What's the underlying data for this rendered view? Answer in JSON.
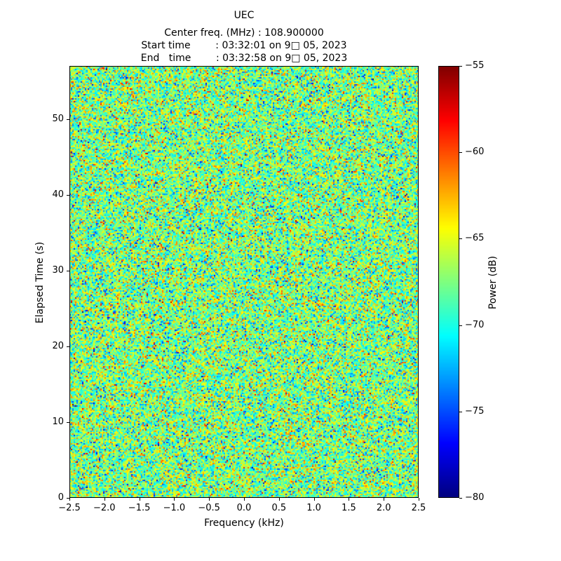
{
  "figure": {
    "title": "UEC",
    "header_lines": [
      "Center freq. (MHz) : 108.900000",
      "Start time        : 03:32:01 on 9□ 05, 2023",
      "End   time        : 03:32:58 on 9□ 05, 2023"
    ]
  },
  "chart_data": {
    "type": "heatmap",
    "title": "UEC",
    "center_freq_mhz": "108.900000",
    "start_time": "03:32:01 on 9□ 05, 2023",
    "end_time": "03:32:58 on 9□ 05, 2023",
    "xlabel": "Frequency (kHz)",
    "ylabel": "Elapsed Time (s)",
    "colorbar_label": "Power (dB)",
    "xlim": [
      -2.5,
      2.5
    ],
    "ylim": [
      0,
      57
    ],
    "clim": [
      -80,
      -55
    ],
    "x_tick_values": [
      -2.5,
      -2.0,
      -1.5,
      -1.0,
      -0.5,
      0.0,
      0.5,
      1.0,
      1.5,
      2.0,
      2.5
    ],
    "x_tick_labels": [
      "−2.5",
      "−2.0",
      "−1.5",
      "−1.0",
      "−0.5",
      "0.0",
      "0.5",
      "1.0",
      "1.5",
      "2.0",
      "2.5"
    ],
    "y_tick_values": [
      0,
      10,
      20,
      30,
      40,
      50
    ],
    "y_tick_labels": [
      "0",
      "10",
      "20",
      "30",
      "40",
      "50"
    ],
    "colorbar_tick_values": [
      -55,
      -60,
      -65,
      -70,
      -75,
      -80
    ],
    "colorbar_tick_labels": [
      "−55",
      "−60",
      "−65",
      "−70",
      "−75",
      "−80"
    ],
    "colormap": "jet",
    "grid": false,
    "legend": "none",
    "noise": {
      "distribution": "gaussian",
      "mean_db": -67.5,
      "std_db": 3.4,
      "seed": 20230905
    }
  }
}
